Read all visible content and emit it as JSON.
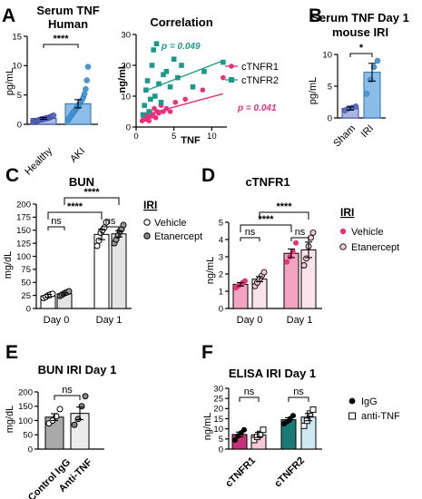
{
  "figure": {
    "panel_letters": [
      "A",
      "B",
      "C",
      "D",
      "E",
      "F"
    ]
  },
  "chart_data": [
    {
      "id": "A1",
      "type": "bar",
      "title": "Serum TNF",
      "subtitle": "Human",
      "ylabel": "pg/mL",
      "ylim": [
        0,
        15
      ],
      "yticks": [
        0,
        5,
        10,
        15
      ],
      "categories": [
        "Healthy",
        "AKI"
      ],
      "values": [
        1.0,
        3.5
      ],
      "errors": [
        0.15,
        0.7
      ],
      "points": [
        [
          0.4,
          0.5,
          0.6,
          0.6,
          0.7,
          0.8,
          0.8,
          0.9,
          0.9,
          1.0,
          1.0,
          1.1,
          1.1,
          1.2,
          1.3,
          1.4,
          1.5
        ],
        [
          0.7,
          1.0,
          1.3,
          1.6,
          1.9,
          2.1,
          2.4,
          2.7,
          3.0,
          3.3,
          3.6,
          3.9,
          4.2,
          4.6,
          5.2,
          6.0,
          7.5,
          9.8
        ]
      ],
      "colors": {
        "bar": "#a9b6e3",
        "edge": "#3d4fa1",
        "dot": "#5b6fc2",
        "bar2": "#8bbde8",
        "dot2": "#4a9ad8"
      },
      "significance": "****"
    },
    {
      "id": "A2",
      "type": "scatter",
      "title": "Correlation",
      "xlabel": "TNF",
      "ylabel": "ng/mL",
      "xlim": [
        0,
        12
      ],
      "ylim": [
        0,
        30
      ],
      "xticks": [
        0,
        5,
        10
      ],
      "yticks": [
        0,
        10,
        20,
        30
      ],
      "series": [
        {
          "name": "cTNFR1",
          "color": "#e8317a",
          "x": [
            0.8,
            1.0,
            1.2,
            1.4,
            1.5,
            1.7,
            1.8,
            2.0,
            2.2,
            2.4,
            2.6,
            2.8,
            3.0,
            3.3,
            3.6,
            4.0,
            4.5,
            5.2,
            6.5,
            8.8,
            11.5
          ],
          "y": [
            2,
            3,
            2.5,
            4,
            3,
            2,
            5,
            3.5,
            4,
            6,
            3,
            5,
            4.5,
            7,
            5,
            6,
            5,
            8,
            9,
            12,
            16
          ],
          "fit": [
            [
              1,
              3.8
            ],
            [
              11.5,
              10.8
            ]
          ],
          "p": "p = 0.041"
        },
        {
          "name": "cTNFR2",
          "color": "#1b9a8b",
          "x": [
            0.9,
            1.1,
            1.3,
            1.5,
            1.7,
            1.9,
            2.1,
            2.3,
            2.5,
            2.7,
            3.0,
            3.3,
            3.6,
            4.0,
            4.5,
            5.0,
            5.5,
            6.0,
            7.5,
            9.0,
            11.5
          ],
          "y": [
            4,
            7,
            12,
            15,
            5,
            9,
            20,
            25,
            10,
            27,
            14,
            8,
            17,
            18,
            13,
            22,
            16,
            20,
            13,
            18,
            21
          ],
          "fit": [
            [
              1,
              11.5
            ],
            [
              11.5,
              21.5
            ]
          ],
          "p": "p = 0.049"
        }
      ],
      "legend": "top-right"
    },
    {
      "id": "B",
      "type": "bar",
      "title": "Serum TNF Day 1",
      "subtitle": "mouse IRI",
      "ylabel": "pg/mL",
      "ylim": [
        0,
        10
      ],
      "yticks": [
        0,
        5,
        10
      ],
      "categories": [
        "Sham",
        "IRI"
      ],
      "values": [
        1.5,
        7.2
      ],
      "errors": [
        0.25,
        1.4
      ],
      "points": [
        [
          1.2,
          1.5,
          1.6,
          1.8
        ],
        [
          3.8,
          6.0,
          8.0,
          9.0
        ]
      ],
      "colors": {
        "bar": "#a9b6e3",
        "edge": "#3d4fa1",
        "dot": "#5b6fc2",
        "bar2": "#8bbde8",
        "dot2": "#4a9ad8"
      },
      "significance": "*"
    },
    {
      "id": "C",
      "type": "bar",
      "title": "BUN",
      "ylabel": "mg/dL",
      "ylim": [
        0,
        200
      ],
      "yticks": [
        0,
        25,
        50,
        75,
        100,
        125,
        150,
        175,
        200
      ],
      "categories": [
        "Day 0",
        "Day 1"
      ],
      "legend_title": "IRI",
      "series": [
        {
          "name": "Vehicle",
          "values": [
            24,
            142
          ],
          "errors": [
            3,
            10
          ],
          "points": [
            [
              20,
              22,
              25,
              27,
              28
            ],
            [
              120,
              130,
              145,
              150,
              155,
              165
            ]
          ]
        },
        {
          "name": "Etanercept",
          "values": [
            28,
            143
          ],
          "errors": [
            2,
            6
          ],
          "points": [
            [
              24,
              26,
              28,
              30,
              31,
              33
            ],
            [
              125,
              132,
              140,
              148,
              152,
              160
            ]
          ]
        }
      ],
      "significance": [
        "ns",
        "ns",
        "****",
        "****"
      ]
    },
    {
      "id": "D",
      "type": "bar",
      "title": "cTNFR1",
      "ylabel": "ng/mL",
      "ylim": [
        0,
        5
      ],
      "yticks": [
        0,
        1,
        2,
        3,
        4,
        5
      ],
      "categories": [
        "Day 0",
        "Day 1"
      ],
      "legend_title": "IRI",
      "series": [
        {
          "name": "Vehicle",
          "color": "#e8317a",
          "values": [
            1.4,
            3.2
          ],
          "errors": [
            0.1,
            0.25
          ],
          "points": [
            [
              1.2,
              1.3,
              1.4,
              1.5,
              1.6
            ],
            [
              2.7,
              3.0,
              3.3,
              3.8
            ]
          ]
        },
        {
          "name": "Etanercept",
          "color": "#f7c7d8",
          "values": [
            1.7,
            3.4
          ],
          "errors": [
            0.15,
            0.45
          ],
          "points": [
            [
              1.3,
              1.5,
              1.7,
              1.9,
              2.1
            ],
            [
              2.5,
              2.9,
              3.6,
              4.1,
              4.4
            ]
          ]
        }
      ],
      "significance": [
        "ns",
        "ns",
        "****",
        "****"
      ]
    },
    {
      "id": "E",
      "type": "bar",
      "title": "BUN IRI Day 1",
      "ylabel": "mg/dL",
      "ylim": [
        0,
        200
      ],
      "yticks": [
        0,
        50,
        100,
        150,
        200
      ],
      "categories": [
        "Control IgG",
        "Anti-TNF"
      ],
      "values": [
        112,
        125
      ],
      "errors": [
        12,
        22
      ],
      "points": [
        [
          90,
          100,
          115,
          140
        ],
        [
          85,
          105,
          150,
          185
        ]
      ],
      "colors": {
        "bar": "#a9a9a9",
        "bar2": "#ececec"
      },
      "significance": "ns"
    },
    {
      "id": "F",
      "type": "bar",
      "title": "ELISA IRI Day 1",
      "ylabel": "ng/mL",
      "ylim": [
        0,
        30
      ],
      "yticks": [
        0,
        5,
        10,
        15,
        20,
        25,
        30
      ],
      "categories": [
        "cTNFR1",
        "cTNFR2"
      ],
      "series": [
        {
          "name": "IgG",
          "values": [
            7.2,
            14.5
          ],
          "errors": [
            1.2,
            1.0
          ],
          "points": [
            [
              4.5,
              6.5,
              8.0,
              9.5
            ],
            [
              12.5,
              13.5,
              15.0,
              16.5
            ]
          ]
        },
        {
          "name": "anti-TNF",
          "values": [
            7.0,
            15.8
          ],
          "errors": [
            1.3,
            1.8
          ],
          "points": [
            [
              4.5,
              6.0,
              7.5,
              9.5
            ],
            [
              11.5,
              14.0,
              17.5,
              19.5
            ]
          ]
        }
      ],
      "group_colors": {
        "cTNFR1": [
          "#c7327a",
          "#f4c7d9"
        ],
        "cTNFR2": [
          "#1b7a73",
          "#cfe9f2"
        ]
      },
      "significance": [
        "ns",
        "ns"
      ]
    }
  ]
}
